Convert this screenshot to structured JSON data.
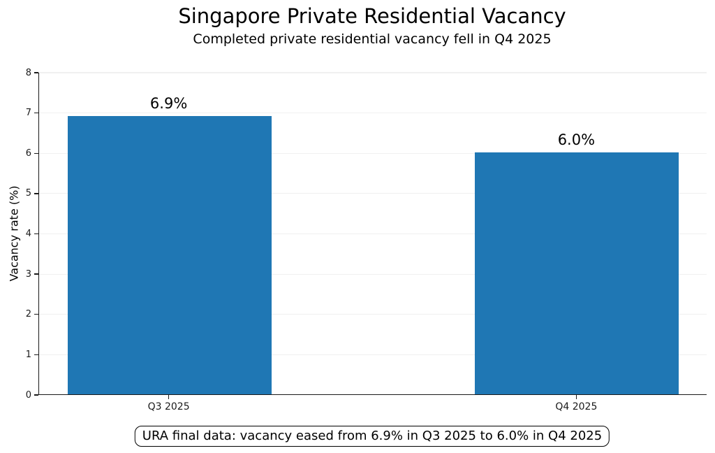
{
  "chart_data": {
    "type": "bar",
    "title": "Singapore Private Residential Vacancy",
    "subtitle": "Completed private residential vacancy fell in Q4 2025",
    "categories": [
      "Q3 2025",
      "Q4 2025"
    ],
    "values": [
      6.9,
      6.0
    ],
    "value_labels": [
      "6.9%",
      "6.0%"
    ],
    "xlabel": "",
    "ylabel": "Vacancy rate (%)",
    "ylim": [
      0,
      8
    ],
    "yticks": [
      0,
      1,
      2,
      3,
      4,
      5,
      6,
      7,
      8
    ],
    "grid": "horizontal",
    "legend": "none",
    "bar_color": "#1f77b4",
    "annotation": "URA final data: vacancy eased from 6.9% in Q3 2025 to 6.0% in Q4 2025"
  }
}
